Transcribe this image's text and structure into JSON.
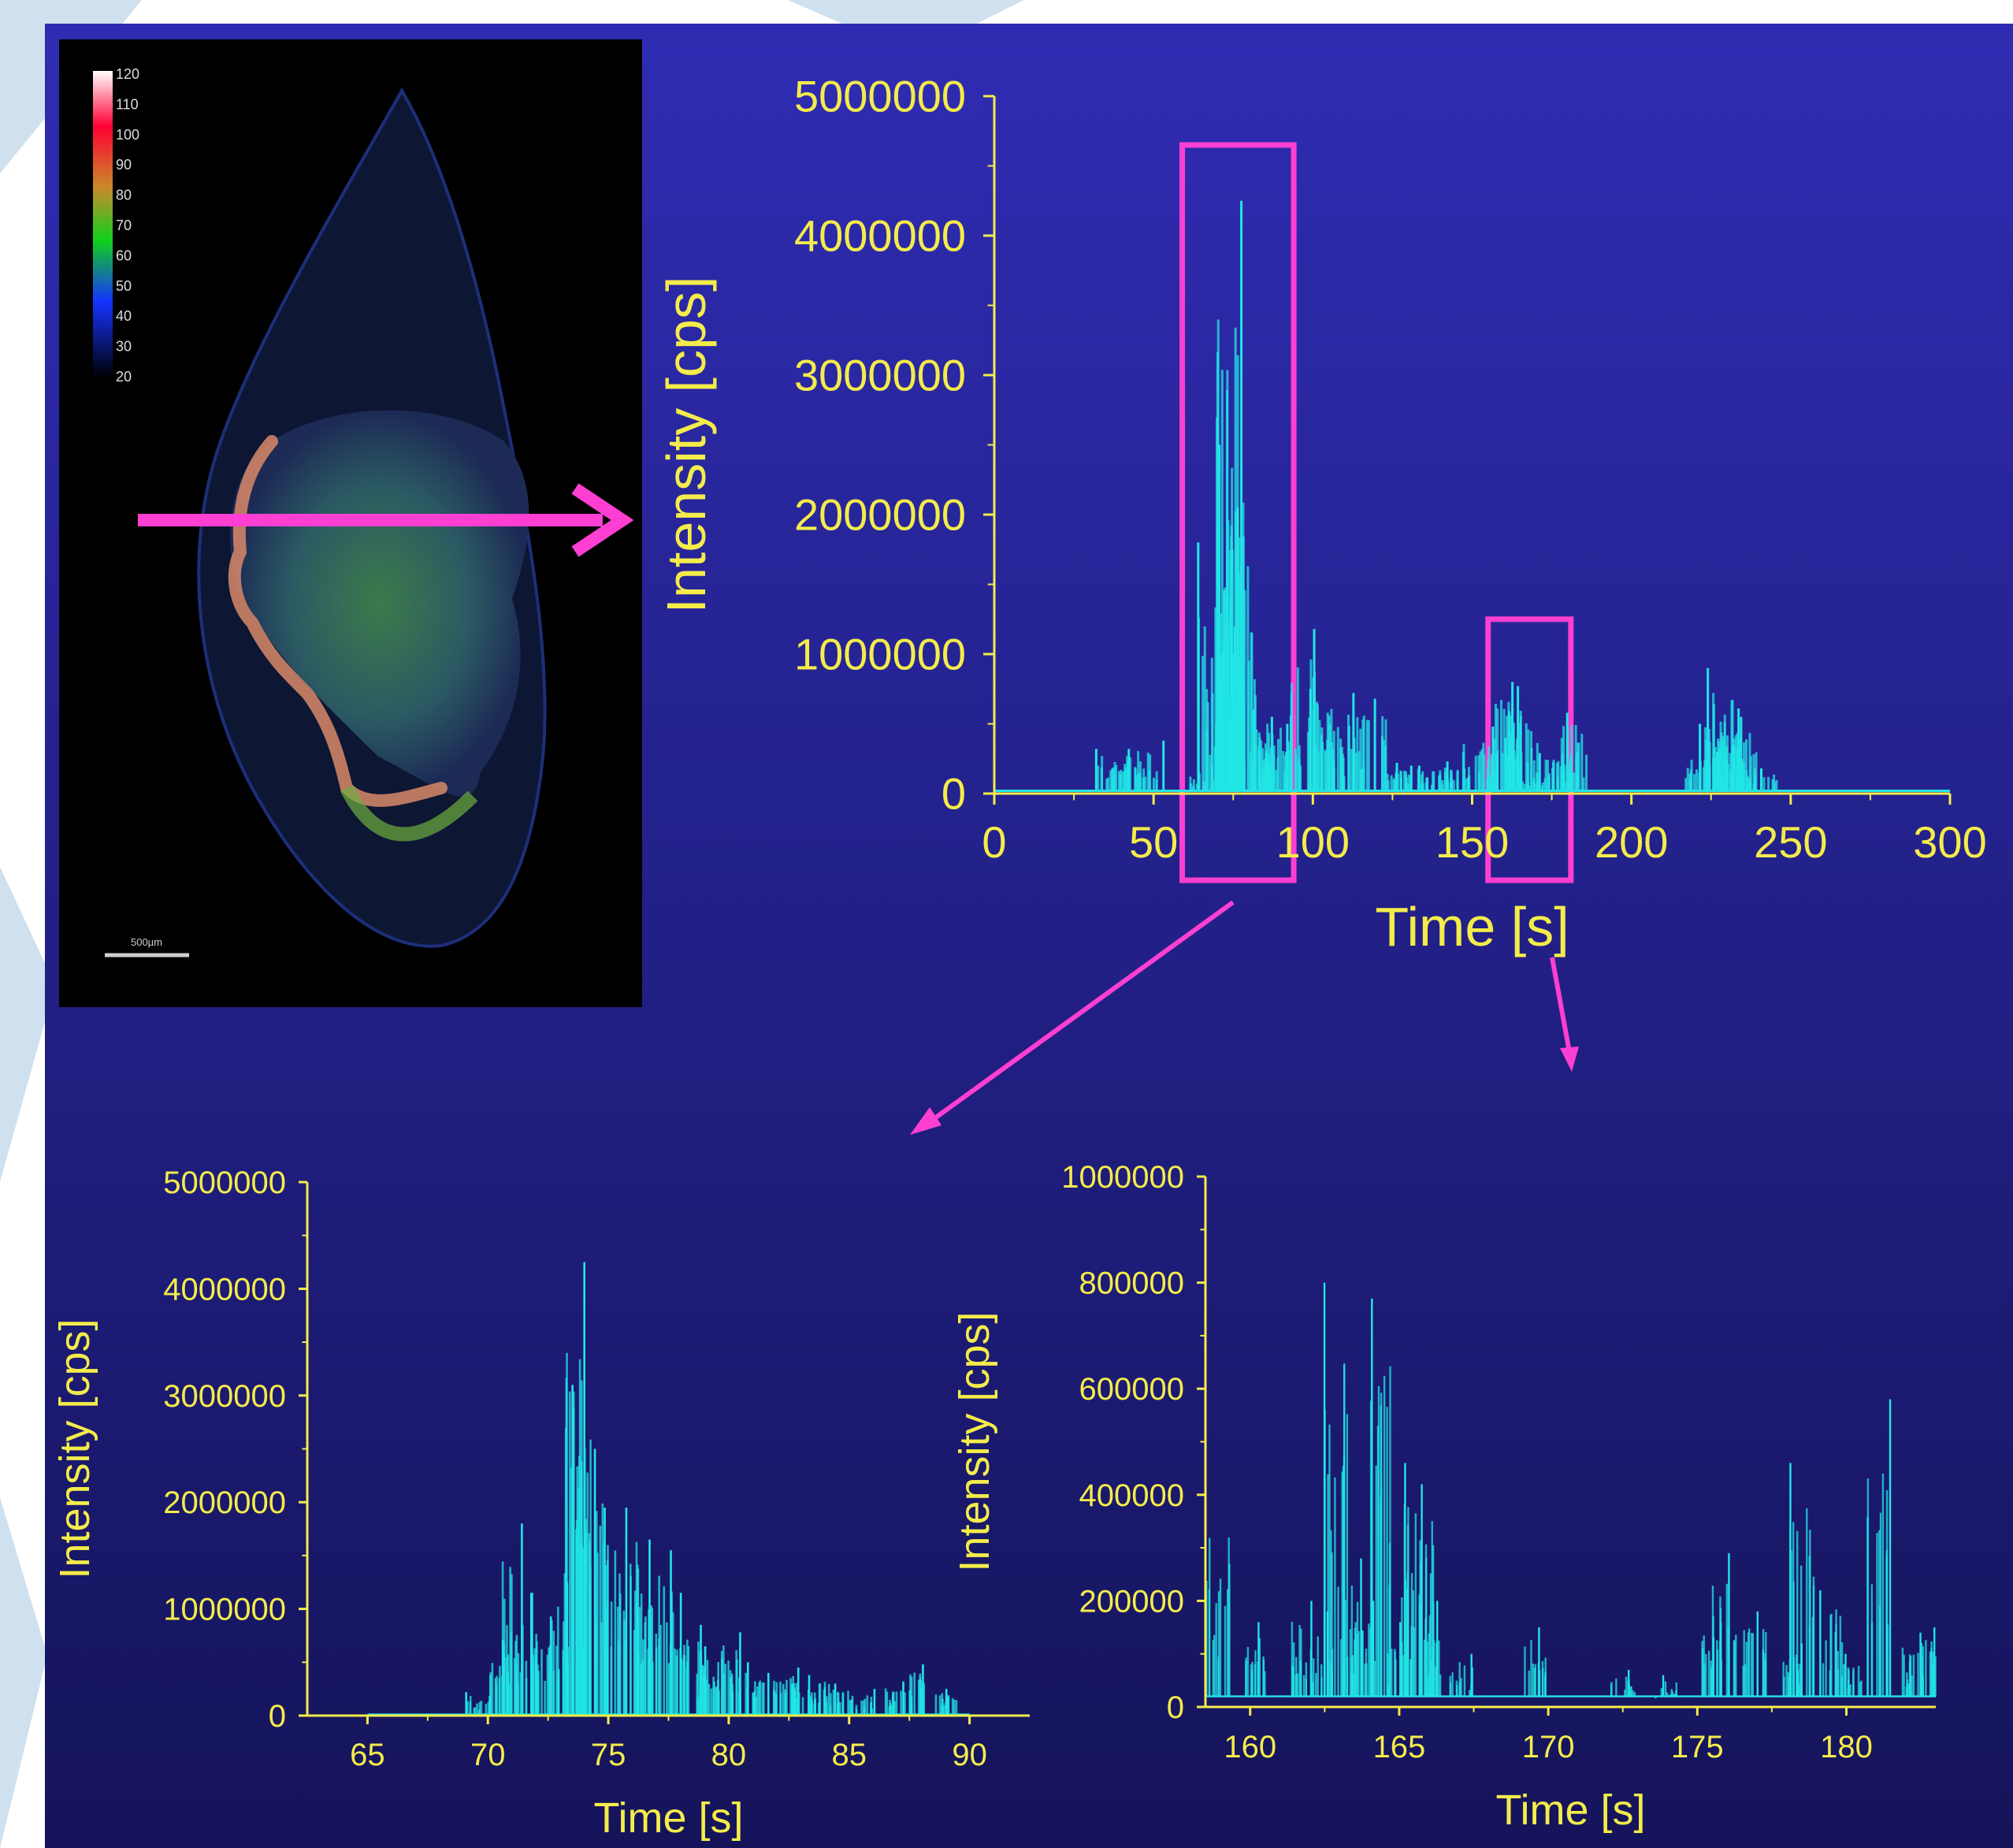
{
  "colors": {
    "bg_top": "#2f2cb3",
    "bg_bottom": "#15145a",
    "axis": "#f4ec4a",
    "trace": "#22e6e6",
    "highlight": "#ff3fd2",
    "watermark": "#cfe1ef"
  },
  "image_panel": {
    "colorbar_ticks": [
      "120",
      "110",
      "100",
      "90",
      "80",
      "70",
      "60",
      "50",
      "40",
      "30",
      "20"
    ],
    "scalebar_label": "500µm"
  },
  "chart_data": [
    {
      "id": "overview",
      "type": "line",
      "xlabel": "Time [s]",
      "ylabel": "Intensity [cps]",
      "xlim": [
        0,
        300
      ],
      "ylim": [
        0,
        5000000
      ],
      "xticks": [
        "0",
        "50",
        "100",
        "150",
        "200",
        "250",
        "300"
      ],
      "yticks": [
        "0",
        "1000000",
        "2000000",
        "3000000",
        "4000000",
        "5000000"
      ],
      "highlight_ranges": [
        [
          59,
          94
        ],
        [
          155,
          181
        ]
      ],
      "baseline": 20000,
      "peaks": [
        [
          37,
          320000
        ],
        [
          40,
          320000
        ],
        [
          50,
          380000
        ],
        [
          66,
          200000
        ],
        [
          69,
          1800000
        ],
        [
          71,
          1000000
        ],
        [
          73.5,
          4250000
        ],
        [
          74.5,
          2500000
        ],
        [
          76,
          2050000
        ],
        [
          78,
          1200000
        ],
        [
          82,
          600000
        ],
        [
          85,
          550000
        ],
        [
          88,
          500000
        ],
        [
          92,
          560000
        ],
        [
          98,
          1180000
        ],
        [
          101,
          750000
        ],
        [
          108,
          720000
        ],
        [
          111,
          400000
        ],
        [
          118,
          680000
        ],
        [
          126,
          200000
        ],
        [
          131,
          220000
        ],
        [
          138,
          200000
        ],
        [
          145,
          230000
        ],
        [
          152,
          480000
        ],
        [
          157,
          400000
        ],
        [
          162,
          800000
        ],
        [
          164,
          770000
        ],
        [
          166,
          450000
        ],
        [
          170,
          150000
        ],
        [
          176,
          290000
        ],
        [
          180,
          460000
        ],
        [
          182,
          580000
        ],
        [
          222,
          300000
        ],
        [
          226,
          500000
        ],
        [
          228,
          900000
        ],
        [
          231,
          550000
        ],
        [
          233,
          610000
        ],
        [
          236,
          350000
        ],
        [
          241,
          180000
        ]
      ]
    },
    {
      "id": "zoom_a",
      "type": "line",
      "xlabel": "Time [s]",
      "ylabel": "Intensity [cps]",
      "xlim": [
        62.5,
        92.5
      ],
      "ylim": [
        0,
        5000000
      ],
      "xticks": [
        "65",
        "70",
        "75",
        "80",
        "85",
        "90"
      ],
      "yticks": [
        "0",
        "1000000",
        "2000000",
        "3000000",
        "4000000",
        "5000000"
      ],
      "baseline": 10000,
      "peaks": [
        [
          69.6,
          220000
        ],
        [
          70.4,
          700000
        ],
        [
          71.1,
          1800000
        ],
        [
          71.6,
          1150000
        ],
        [
          72.3,
          1150000
        ],
        [
          72.9,
          1250000
        ],
        [
          73.6,
          4250000
        ],
        [
          73.9,
          3100000
        ],
        [
          74.4,
          2500000
        ],
        [
          75.1,
          1950000
        ],
        [
          75.8,
          1950000
        ],
        [
          76.5,
          1650000
        ],
        [
          77.2,
          1550000
        ],
        [
          77.9,
          1150000
        ],
        [
          78.6,
          850000
        ],
        [
          79.2,
          650000
        ],
        [
          80.0,
          780000
        ],
        [
          80.6,
          500000
        ],
        [
          81.5,
          400000
        ],
        [
          82.4,
          450000
        ],
        [
          83.1,
          300000
        ],
        [
          83.8,
          380000
        ],
        [
          84.7,
          300000
        ],
        [
          85.6,
          250000
        ],
        [
          86.9,
          320000
        ],
        [
          88.0,
          480000
        ],
        [
          89.0,
          250000
        ]
      ]
    },
    {
      "id": "zoom_b",
      "type": "line",
      "xlabel": "Time [s]",
      "ylabel": "Intensity [cps]",
      "xlim": [
        158.5,
        183
      ],
      "ylim": [
        0,
        1000000
      ],
      "xticks": [
        "160",
        "165",
        "170",
        "175",
        "180"
      ],
      "yticks": [
        "0",
        "200000",
        "400000",
        "600000",
        "800000",
        "1000000"
      ],
      "baseline": 20000,
      "peaks": [
        [
          158.9,
          380000
        ],
        [
          160.1,
          160000
        ],
        [
          161.8,
          200000
        ],
        [
          162.4,
          180000
        ],
        [
          162.9,
          800000
        ],
        [
          163.4,
          280000
        ],
        [
          163.8,
          200000
        ],
        [
          164.4,
          770000
        ],
        [
          165.0,
          160000
        ],
        [
          165.4,
          460000
        ],
        [
          165.8,
          420000
        ],
        [
          166.1,
          200000
        ],
        [
          167.1,
          100000
        ],
        [
          169.6,
          150000
        ],
        [
          172.5,
          70000
        ],
        [
          174.0,
          60000
        ],
        [
          175.4,
          160000
        ],
        [
          175.9,
          290000
        ],
        [
          176.9,
          180000
        ],
        [
          178.1,
          120000
        ],
        [
          178.5,
          460000
        ],
        [
          179.5,
          220000
        ],
        [
          180.2,
          100000
        ],
        [
          181.1,
          580000
        ],
        [
          182.2,
          140000
        ],
        [
          182.9,
          150000
        ]
      ]
    }
  ]
}
